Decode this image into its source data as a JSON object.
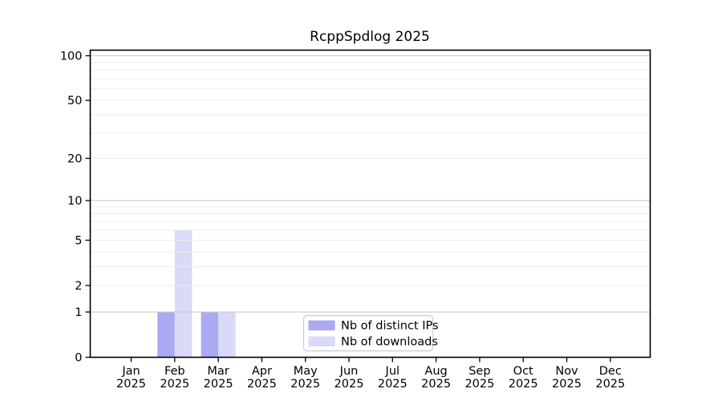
{
  "title": "RcppSpdlog 2025",
  "colors": {
    "distinct_ips": "#aaaaf2",
    "downloads": "#d9d9f8",
    "grid_minor": "#ededed",
    "grid_major": "#c9c9c9",
    "axis": "#000000",
    "legend_border": "#cccccc",
    "legend_bg": "#ffffff",
    "background": "#ffffff"
  },
  "legend": {
    "entries": [
      {
        "label": "Nb of distinct IPs",
        "color": "#aaaaf2"
      },
      {
        "label": "Nb of downloads",
        "color": "#d9d9f8"
      }
    ],
    "position": "lower center"
  },
  "chart_data": {
    "type": "bar",
    "title": "RcppSpdlog 2025",
    "categories": [
      "Jan",
      "Feb",
      "Mar",
      "Apr",
      "May",
      "Jun",
      "Jul",
      "Aug",
      "Sep",
      "Oct",
      "Nov",
      "Dec"
    ],
    "year": "2025",
    "series": [
      {
        "name": "Nb of distinct IPs",
        "color": "#aaaaf2",
        "values": [
          0,
          1,
          1,
          0,
          0,
          0,
          0,
          0,
          0,
          0,
          0,
          0
        ]
      },
      {
        "name": "Nb of downloads",
        "color": "#d9d9f8",
        "values": [
          0,
          6,
          1,
          0,
          0,
          0,
          0,
          0,
          0,
          0,
          0,
          0
        ]
      }
    ],
    "xlabel": "",
    "ylabel": "",
    "yscale": "log1p",
    "ylim": [
      0,
      100
    ],
    "yticks": [
      0,
      1,
      2,
      5,
      10,
      20,
      50,
      100
    ],
    "grid_minor_values": [
      2,
      3,
      4,
      5,
      6,
      7,
      8,
      9,
      20,
      30,
      40,
      50,
      60,
      70,
      80,
      90
    ],
    "grid_major_values": [
      1,
      10,
      100
    ],
    "grid": "horizontal",
    "legend_position": "lower center"
  }
}
